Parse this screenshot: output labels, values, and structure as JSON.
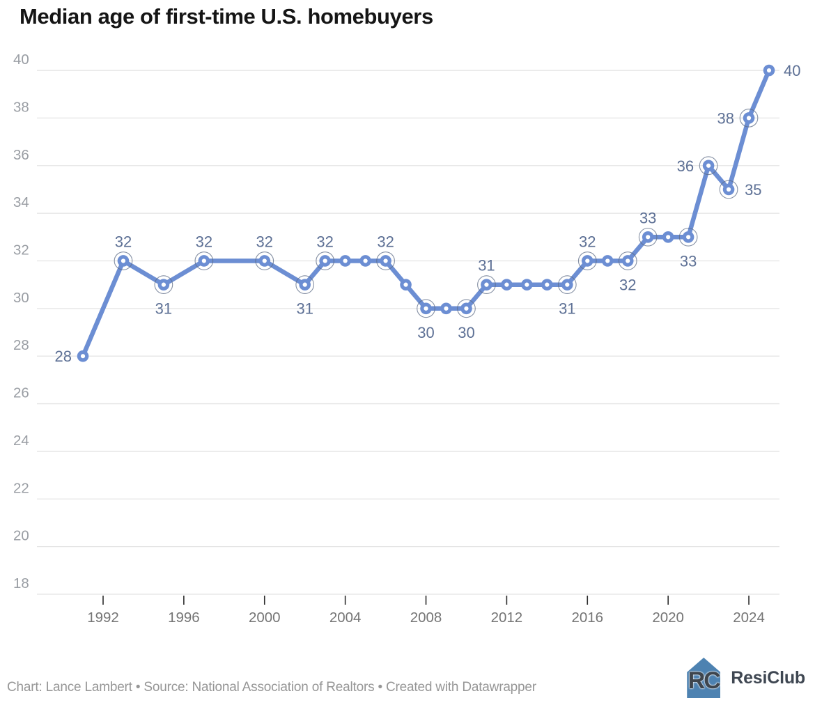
{
  "title": "Median age of first-time U.S. homebuyers",
  "footer": {
    "credit": "Chart: Lance Lambert • Source: National Association of Realtors • Created with Datawrapper",
    "logo_monogram": "RC",
    "logo_text": "ResiClub"
  },
  "chart_data": {
    "type": "line",
    "title": "Median age of first-time U.S. homebuyers",
    "series": [
      {
        "name": "Median age of first-time U.S. homebuyers",
        "points": [
          {
            "year": 1991,
            "value": 28,
            "label": "28",
            "label_pos": "left",
            "ring": false
          },
          {
            "year": 1993,
            "value": 32,
            "label": "32",
            "label_pos": "above",
            "ring": true
          },
          {
            "year": 1995,
            "value": 31,
            "label": "31",
            "label_pos": "below",
            "ring": true
          },
          {
            "year": 1997,
            "value": 32,
            "label": "32",
            "label_pos": "above",
            "ring": true
          },
          {
            "year": 2000,
            "value": 32,
            "label": "32",
            "label_pos": "above",
            "ring": true
          },
          {
            "year": 2002,
            "value": 31,
            "label": "31",
            "label_pos": "below",
            "ring": true
          },
          {
            "year": 2003,
            "value": 32,
            "label": "32",
            "label_pos": "above",
            "ring": true
          },
          {
            "year": 2004,
            "value": 32,
            "ring": false
          },
          {
            "year": 2005,
            "value": 32,
            "ring": false
          },
          {
            "year": 2006,
            "value": 32,
            "label": "32",
            "label_pos": "above",
            "ring": true
          },
          {
            "year": 2007,
            "value": 31,
            "ring": false
          },
          {
            "year": 2008,
            "value": 30,
            "label": "30",
            "label_pos": "below",
            "ring": true
          },
          {
            "year": 2009,
            "value": 30,
            "ring": false
          },
          {
            "year": 2010,
            "value": 30,
            "label": "30",
            "label_pos": "below",
            "ring": true
          },
          {
            "year": 2011,
            "value": 31,
            "label": "31",
            "label_pos": "above",
            "ring": true
          },
          {
            "year": 2012,
            "value": 31,
            "ring": false
          },
          {
            "year": 2013,
            "value": 31,
            "ring": false
          },
          {
            "year": 2014,
            "value": 31,
            "ring": false
          },
          {
            "year": 2015,
            "value": 31,
            "label": "31",
            "label_pos": "below",
            "ring": true
          },
          {
            "year": 2016,
            "value": 32,
            "label": "32",
            "label_pos": "above",
            "ring": true
          },
          {
            "year": 2017,
            "value": 32,
            "ring": false
          },
          {
            "year": 2018,
            "value": 32,
            "label": "32",
            "label_pos": "below",
            "ring": true
          },
          {
            "year": 2019,
            "value": 33,
            "label": "33",
            "label_pos": "above",
            "ring": true
          },
          {
            "year": 2020,
            "value": 33,
            "ring": false
          },
          {
            "year": 2021,
            "value": 33,
            "label": "33",
            "label_pos": "below",
            "ring": true
          },
          {
            "year": 2022,
            "value": 36,
            "label": "36",
            "label_pos": "left",
            "ring": true
          },
          {
            "year": 2023,
            "value": 35,
            "label": "35",
            "label_pos": "right",
            "ring": true
          },
          {
            "year": 2024,
            "value": 38,
            "label": "38",
            "label_pos": "left",
            "ring": true
          },
          {
            "year": 2025,
            "value": 40,
            "label": "40",
            "label_pos": "right",
            "ring": false
          }
        ]
      }
    ],
    "yticks": [
      40,
      38,
      36,
      34,
      32,
      30,
      28,
      26,
      24,
      22,
      20,
      18
    ],
    "xticks": [
      1992,
      1996,
      2000,
      2004,
      2008,
      2012,
      2016,
      2020,
      2024
    ],
    "ylim": [
      18,
      40
    ],
    "xlim": [
      1991,
      2025
    ],
    "grid": "horizontal",
    "legend": "none",
    "colors": {
      "line": "#6c8ed3",
      "marker_fill": "#6c8ed3",
      "marker_center": "#ffffff",
      "ring_stroke": "#5c6b85",
      "data_label": "#5d7095",
      "grid_line": "#e4e4e4",
      "y_tick_label": "#9a9ea4",
      "x_tick_label": "#757575",
      "x_tick_mark": "#2b2b2b"
    }
  }
}
